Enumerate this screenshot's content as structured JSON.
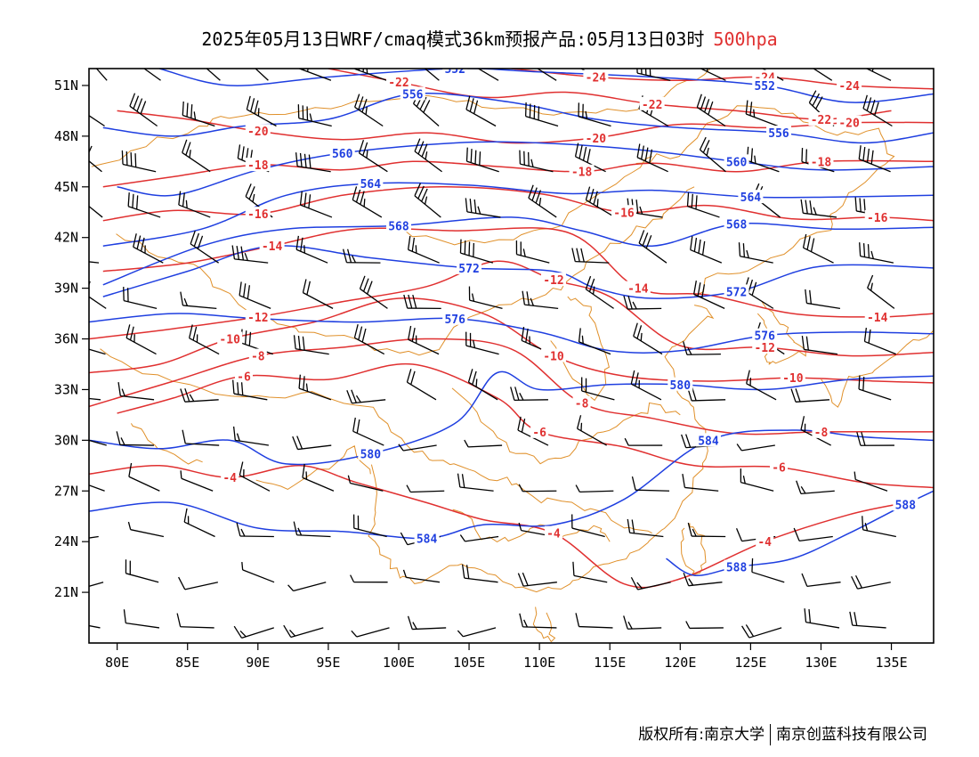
{
  "title": {
    "main": "2025年05月13日WRF/cmaq模式36km预报产品:05月13日03时",
    "level": "500hpa"
  },
  "credit": {
    "left": "版权所有:南京大学",
    "right": "南京创蓝科技有限公司"
  },
  "colors": {
    "height_contour": "#1f3fe0",
    "temperature_contour": "#e03030",
    "boundary": "#e0902a",
    "wind_barb": "#000000"
  },
  "map": {
    "lon_range": [
      78,
      138
    ],
    "lat_range": [
      18,
      52
    ],
    "x_ticks": [
      "80E",
      "85E",
      "90E",
      "95E",
      "100E",
      "105E",
      "110E",
      "115E",
      "120E",
      "125E",
      "130E",
      "135E"
    ],
    "y_ticks": [
      "51N",
      "48N",
      "45N",
      "42N",
      "39N",
      "36N",
      "33N",
      "30N",
      "27N",
      "24N",
      "21N"
    ],
    "height_contours": [
      {
        "value": "552",
        "points": [
          [
            83,
            52
          ],
          [
            88,
            51
          ],
          [
            95,
            51.5
          ],
          [
            104,
            52
          ],
          [
            110,
            51.8
          ],
          [
            118,
            51.5
          ],
          [
            126,
            51
          ],
          [
            132,
            50
          ],
          [
            138,
            50.5
          ]
        ]
      },
      {
        "value": "556",
        "points": [
          [
            79,
            48.5
          ],
          [
            84,
            48
          ],
          [
            89,
            48.6
          ],
          [
            95,
            49
          ],
          [
            101,
            50.5
          ],
          [
            108,
            50
          ],
          [
            114,
            49
          ],
          [
            120,
            48.5
          ],
          [
            127,
            48.2
          ],
          [
            133,
            47.6
          ],
          [
            138,
            48.2
          ]
        ]
      },
      {
        "value": "560",
        "points": [
          [
            80,
            45
          ],
          [
            84,
            44.5
          ],
          [
            90,
            46
          ],
          [
            96,
            47
          ],
          [
            104,
            47.6
          ],
          [
            110,
            47.6
          ],
          [
            117,
            47.2
          ],
          [
            124,
            46.5
          ],
          [
            130,
            46
          ],
          [
            138,
            46.2
          ]
        ]
      },
      {
        "value": "564",
        "points": [
          [
            79,
            41.5
          ],
          [
            86,
            42.5
          ],
          [
            92,
            44.5
          ],
          [
            98,
            45.2
          ],
          [
            105,
            45.1
          ],
          [
            112,
            44.6
          ],
          [
            118,
            44.8
          ],
          [
            125,
            44.4
          ],
          [
            131,
            44.4
          ],
          [
            138,
            44.5
          ]
        ]
      },
      {
        "value": "568",
        "points": [
          [
            79,
            39.2
          ],
          [
            86,
            41.5
          ],
          [
            92,
            42.5
          ],
          [
            100,
            42.7
          ],
          [
            108,
            43.2
          ],
          [
            113,
            42.4
          ],
          [
            118,
            41.5
          ],
          [
            124,
            42.8
          ],
          [
            131,
            42.5
          ],
          [
            138,
            42.6
          ]
        ]
      },
      {
        "value": "572",
        "points": [
          [
            79,
            38.5
          ],
          [
            85,
            40
          ],
          [
            91,
            41.5
          ],
          [
            98,
            40.8
          ],
          [
            105,
            40.2
          ],
          [
            111,
            40
          ],
          [
            114,
            39
          ],
          [
            118,
            38.4
          ],
          [
            124,
            38.8
          ],
          [
            130,
            40.3
          ],
          [
            138,
            40.2
          ]
        ]
      },
      {
        "value": "576",
        "points": [
          [
            78,
            37
          ],
          [
            84,
            37.5
          ],
          [
            90,
            37.2
          ],
          [
            97,
            37
          ],
          [
            104,
            37.2
          ],
          [
            110,
            36.4
          ],
          [
            115,
            35.3
          ],
          [
            120,
            35.3
          ],
          [
            126,
            36.2
          ],
          [
            132,
            36.4
          ],
          [
            138,
            36.3
          ]
        ]
      },
      {
        "value": "580",
        "points": [
          [
            78,
            30
          ],
          [
            83,
            29.5
          ],
          [
            88,
            30
          ],
          [
            92,
            28.6
          ],
          [
            98,
            29.2
          ],
          [
            104,
            31
          ],
          [
            107,
            34
          ],
          [
            110,
            33
          ],
          [
            115,
            33.3
          ],
          [
            120,
            33.3
          ],
          [
            126,
            33
          ],
          [
            132,
            33.6
          ],
          [
            138,
            33.8
          ]
        ]
      },
      {
        "value": "584",
        "points": [
          [
            78,
            25.8
          ],
          [
            84,
            26.3
          ],
          [
            90,
            24.8
          ],
          [
            96,
            24.6
          ],
          [
            102,
            24.2
          ],
          [
            106,
            25
          ],
          [
            111,
            25
          ],
          [
            116,
            26.5
          ],
          [
            122,
            30
          ],
          [
            128,
            30.6
          ],
          [
            133,
            30.2
          ],
          [
            138,
            30
          ]
        ]
      },
      {
        "value": "588",
        "points": [
          [
            119,
            23
          ],
          [
            121,
            22
          ],
          [
            124,
            22.5
          ],
          [
            128,
            23
          ],
          [
            132,
            24.5
          ],
          [
            136,
            26.2
          ],
          [
            138,
            27
          ]
        ]
      }
    ],
    "temperature_contours": [
      {
        "value": "-24",
        "points": [
          [
            108,
            52
          ],
          [
            114,
            51.5
          ],
          [
            120,
            51.3
          ],
          [
            126,
            51.5
          ],
          [
            132,
            51
          ],
          [
            138,
            50.8
          ]
        ]
      },
      {
        "value": "-22",
        "points": [
          [
            95,
            52
          ],
          [
            100,
            51.2
          ],
          [
            106,
            50.3
          ],
          [
            112,
            50.6
          ],
          [
            118,
            49.9
          ],
          [
            124,
            49.5
          ],
          [
            130,
            49
          ],
          [
            135,
            49.5
          ]
        ]
      },
      {
        "value": "-20",
        "points": [
          [
            80,
            49.5
          ],
          [
            85,
            49
          ],
          [
            90,
            48.3
          ],
          [
            96,
            47.8
          ],
          [
            102,
            48.2
          ],
          [
            108,
            47.6
          ],
          [
            114,
            47.9
          ],
          [
            120,
            48.7
          ],
          [
            126,
            48.5
          ],
          [
            132,
            48.8
          ],
          [
            138,
            48.8
          ]
        ]
      },
      {
        "value": "-18",
        "points": [
          [
            79,
            45
          ],
          [
            84,
            45.6
          ],
          [
            90,
            46.3
          ],
          [
            96,
            46
          ],
          [
            101,
            46.5
          ],
          [
            107,
            46.2
          ],
          [
            113,
            45.9
          ],
          [
            118,
            46.4
          ],
          [
            124,
            45.9
          ],
          [
            130,
            46.5
          ],
          [
            138,
            46.5
          ]
        ]
      },
      {
        "value": "-16",
        "points": [
          [
            79,
            43
          ],
          [
            84,
            43.6
          ],
          [
            90,
            43.4
          ],
          [
            96,
            44.5
          ],
          [
            103,
            45
          ],
          [
            110,
            44.6
          ],
          [
            116,
            43.5
          ],
          [
            122,
            43.9
          ],
          [
            128,
            43.1
          ],
          [
            134,
            43.2
          ],
          [
            138,
            43
          ]
        ]
      },
      {
        "value": "-14",
        "points": [
          [
            79,
            40
          ],
          [
            85,
            40.5
          ],
          [
            91,
            41.5
          ],
          [
            97,
            42.5
          ],
          [
            104,
            42.4
          ],
          [
            112,
            42.3
          ],
          [
            117,
            39
          ],
          [
            122,
            38.6
          ],
          [
            128,
            37.5
          ],
          [
            134,
            37.3
          ],
          [
            138,
            37.5
          ]
        ]
      },
      {
        "value": "-12",
        "points": [
          [
            78,
            36
          ],
          [
            84,
            36.6
          ],
          [
            90,
            37.3
          ],
          [
            96,
            38.2
          ],
          [
            102,
            39.1
          ],
          [
            107,
            40.6
          ],
          [
            111,
            39.5
          ],
          [
            115,
            38.5
          ],
          [
            120,
            35.6
          ],
          [
            126,
            35.5
          ],
          [
            132,
            35
          ],
          [
            138,
            35.2
          ]
        ]
      },
      {
        "value": "-10",
        "points": [
          [
            78,
            34
          ],
          [
            83,
            34.5
          ],
          [
            88,
            36
          ],
          [
            94,
            37
          ],
          [
            100,
            38.4
          ],
          [
            106,
            37.5
          ],
          [
            111,
            35
          ],
          [
            116,
            33.8
          ],
          [
            122,
            33.5
          ],
          [
            128,
            33.7
          ],
          [
            134,
            33.5
          ],
          [
            138,
            33.4
          ]
        ]
      },
      {
        "value": "-8",
        "points": [
          [
            78,
            32
          ],
          [
            84,
            33.5
          ],
          [
            90,
            35
          ],
          [
            96,
            35.5
          ],
          [
            102,
            36
          ],
          [
            108,
            35.4
          ],
          [
            113,
            32.2
          ],
          [
            118,
            31.3
          ],
          [
            124,
            30.4
          ],
          [
            130,
            30.5
          ],
          [
            138,
            30.5
          ]
        ]
      },
      {
        "value": "-6",
        "points": [
          [
            80,
            31.6
          ],
          [
            84,
            32.5
          ],
          [
            89,
            33.8
          ],
          [
            95,
            33.6
          ],
          [
            101,
            34.5
          ],
          [
            107,
            32.5
          ],
          [
            110,
            30.5
          ],
          [
            116,
            29.6
          ],
          [
            121,
            28.5
          ],
          [
            127,
            28.4
          ],
          [
            133,
            27.5
          ],
          [
            138,
            27.2
          ]
        ]
      },
      {
        "value": "-4",
        "points": [
          [
            78,
            28
          ],
          [
            83,
            28.5
          ],
          [
            88,
            27.8
          ],
          [
            93,
            28.5
          ],
          [
            97,
            27.5
          ],
          [
            102,
            26.3
          ],
          [
            106,
            25.3
          ],
          [
            111,
            24.5
          ],
          [
            116,
            21.5
          ],
          [
            120,
            21.8
          ],
          [
            126,
            24
          ],
          [
            132,
            25.6
          ],
          [
            136,
            26.3
          ]
        ]
      }
    ],
    "label_positions_note": "",
    "boundaries": [],
    "barb_grid": {
      "lon_step": 4,
      "lat_step": 2.7
    }
  }
}
